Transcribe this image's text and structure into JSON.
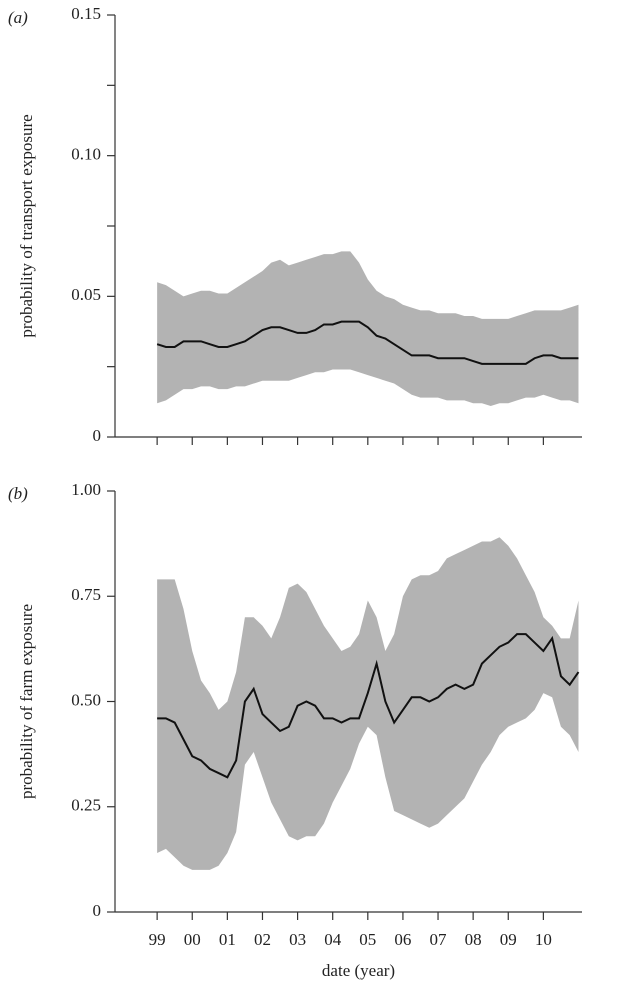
{
  "chart_data": [
    {
      "type": "line",
      "panel_label": "(a)",
      "ylabel": "probability of transport exposure",
      "xlim": [
        1997.8,
        2011.1
      ],
      "ylim": [
        0,
        0.15
      ],
      "yticks": [
        0,
        0.05,
        {
          "value": 0.1,
          "label": "0.10"
        },
        0.15
      ],
      "minor_yticks": [
        0.025,
        0.075,
        0.125
      ],
      "minor_xticks": [
        1999,
        2000,
        2001,
        2002,
        2003,
        2004,
        2005,
        2006,
        2007,
        2008,
        2009,
        2010
      ],
      "color": "#111111",
      "x": [
        1999,
        1999.25,
        1999.5,
        1999.75,
        2000,
        2000.25,
        2000.5,
        2000.75,
        2001,
        2001.25,
        2001.5,
        2001.75,
        2002,
        2002.25,
        2002.5,
        2002.75,
        2003,
        2003.25,
        2003.5,
        2003.75,
        2004,
        2004.25,
        2004.5,
        2004.75,
        2005,
        2005.25,
        2005.5,
        2005.75,
        2006,
        2006.25,
        2006.5,
        2006.75,
        2007,
        2007.25,
        2007.5,
        2007.75,
        2008,
        2008.25,
        2008.5,
        2008.75,
        2009,
        2009.25,
        2009.5,
        2009.75,
        2010,
        2010.25,
        2010.5,
        2010.75,
        2011
      ],
      "values": [
        0.033,
        0.032,
        0.032,
        0.034,
        0.034,
        0.034,
        0.033,
        0.032,
        0.032,
        0.033,
        0.034,
        0.036,
        0.038,
        0.039,
        0.039,
        0.038,
        0.037,
        0.037,
        0.038,
        0.04,
        0.04,
        0.041,
        0.041,
        0.041,
        0.039,
        0.036,
        0.035,
        0.033,
        0.031,
        0.029,
        0.029,
        0.029,
        0.028,
        0.028,
        0.028,
        0.028,
        0.027,
        0.026,
        0.026,
        0.026,
        0.026,
        0.026,
        0.026,
        0.028,
        0.029,
        0.029,
        0.028,
        0.028,
        0.028
      ],
      "band": {
        "color": "#b3b3b3",
        "upper": [
          0.055,
          0.054,
          0.052,
          0.05,
          0.051,
          0.052,
          0.052,
          0.051,
          0.051,
          0.053,
          0.055,
          0.057,
          0.059,
          0.062,
          0.063,
          0.061,
          0.062,
          0.063,
          0.064,
          0.065,
          0.065,
          0.066,
          0.066,
          0.062,
          0.056,
          0.052,
          0.05,
          0.049,
          0.047,
          0.046,
          0.045,
          0.045,
          0.044,
          0.044,
          0.044,
          0.043,
          0.043,
          0.042,
          0.042,
          0.042,
          0.042,
          0.043,
          0.044,
          0.045,
          0.045,
          0.045,
          0.045,
          0.046,
          0.047
        ],
        "lower": [
          0.012,
          0.013,
          0.015,
          0.017,
          0.017,
          0.018,
          0.018,
          0.017,
          0.017,
          0.018,
          0.018,
          0.019,
          0.02,
          0.02,
          0.02,
          0.02,
          0.021,
          0.022,
          0.023,
          0.023,
          0.024,
          0.024,
          0.024,
          0.023,
          0.022,
          0.021,
          0.02,
          0.019,
          0.017,
          0.015,
          0.014,
          0.014,
          0.014,
          0.013,
          0.013,
          0.013,
          0.012,
          0.012,
          0.011,
          0.012,
          0.012,
          0.013,
          0.014,
          0.014,
          0.015,
          0.014,
          0.013,
          0.013,
          0.012
        ]
      }
    },
    {
      "type": "line",
      "panel_label": "(b)",
      "ylabel": "probability of farm exposure",
      "xlabel": "date (year)",
      "xlim": [
        1997.8,
        2011.1
      ],
      "ylim": [
        0,
        1
      ],
      "yticks": [
        0,
        0.25,
        {
          "value": 0.5,
          "label": "0.50"
        },
        0.75,
        {
          "value": 1,
          "label": "1.00"
        }
      ],
      "xticks": [
        {
          "value": 1999,
          "label": "99"
        },
        {
          "value": 2000,
          "label": "00"
        },
        {
          "value": 2001,
          "label": "01"
        },
        {
          "value": 2002,
          "label": "02"
        },
        {
          "value": 2003,
          "label": "03"
        },
        {
          "value": 2004,
          "label": "04"
        },
        {
          "value": 2005,
          "label": "05"
        },
        {
          "value": 2006,
          "label": "06"
        },
        {
          "value": 2007,
          "label": "07"
        },
        {
          "value": 2008,
          "label": "08"
        },
        {
          "value": 2009,
          "label": "09"
        },
        {
          "value": 2010,
          "label": "10"
        }
      ],
      "color": "#111111",
      "x": [
        1999,
        1999.25,
        1999.5,
        1999.75,
        2000,
        2000.25,
        2000.5,
        2000.75,
        2001,
        2001.25,
        2001.5,
        2001.75,
        2002,
        2002.25,
        2002.5,
        2002.75,
        2003,
        2003.25,
        2003.5,
        2003.75,
        2004,
        2004.25,
        2004.5,
        2004.75,
        2005,
        2005.25,
        2005.5,
        2005.75,
        2006,
        2006.25,
        2006.5,
        2006.75,
        2007,
        2007.25,
        2007.5,
        2007.75,
        2008,
        2008.25,
        2008.5,
        2008.75,
        2009,
        2009.25,
        2009.5,
        2009.75,
        2010,
        2010.25,
        2010.5,
        2010.75,
        2011
      ],
      "values": [
        0.46,
        0.46,
        0.45,
        0.41,
        0.37,
        0.36,
        0.34,
        0.33,
        0.32,
        0.36,
        0.5,
        0.53,
        0.47,
        0.45,
        0.43,
        0.44,
        0.49,
        0.5,
        0.49,
        0.46,
        0.46,
        0.45,
        0.46,
        0.46,
        0.52,
        0.59,
        0.5,
        0.45,
        0.48,
        0.51,
        0.51,
        0.5,
        0.51,
        0.53,
        0.54,
        0.53,
        0.54,
        0.59,
        0.61,
        0.63,
        0.64,
        0.66,
        0.66,
        0.64,
        0.62,
        0.65,
        0.56,
        0.54,
        0.57
      ],
      "band": {
        "color": "#b3b3b3",
        "upper": [
          0.79,
          0.79,
          0.79,
          0.72,
          0.62,
          0.55,
          0.52,
          0.48,
          0.5,
          0.57,
          0.7,
          0.7,
          0.68,
          0.65,
          0.7,
          0.77,
          0.78,
          0.76,
          0.72,
          0.68,
          0.65,
          0.62,
          0.63,
          0.66,
          0.74,
          0.7,
          0.62,
          0.66,
          0.75,
          0.79,
          0.8,
          0.8,
          0.81,
          0.84,
          0.85,
          0.86,
          0.87,
          0.88,
          0.88,
          0.89,
          0.87,
          0.84,
          0.8,
          0.76,
          0.7,
          0.68,
          0.65,
          0.65,
          0.74
        ],
        "lower": [
          0.14,
          0.15,
          0.13,
          0.11,
          0.1,
          0.1,
          0.1,
          0.11,
          0.14,
          0.19,
          0.35,
          0.38,
          0.32,
          0.26,
          0.22,
          0.18,
          0.17,
          0.18,
          0.18,
          0.21,
          0.26,
          0.3,
          0.34,
          0.4,
          0.44,
          0.42,
          0.32,
          0.24,
          0.23,
          0.22,
          0.21,
          0.2,
          0.21,
          0.23,
          0.25,
          0.27,
          0.31,
          0.35,
          0.38,
          0.42,
          0.44,
          0.45,
          0.46,
          0.48,
          0.52,
          0.51,
          0.44,
          0.42,
          0.38
        ]
      }
    }
  ]
}
